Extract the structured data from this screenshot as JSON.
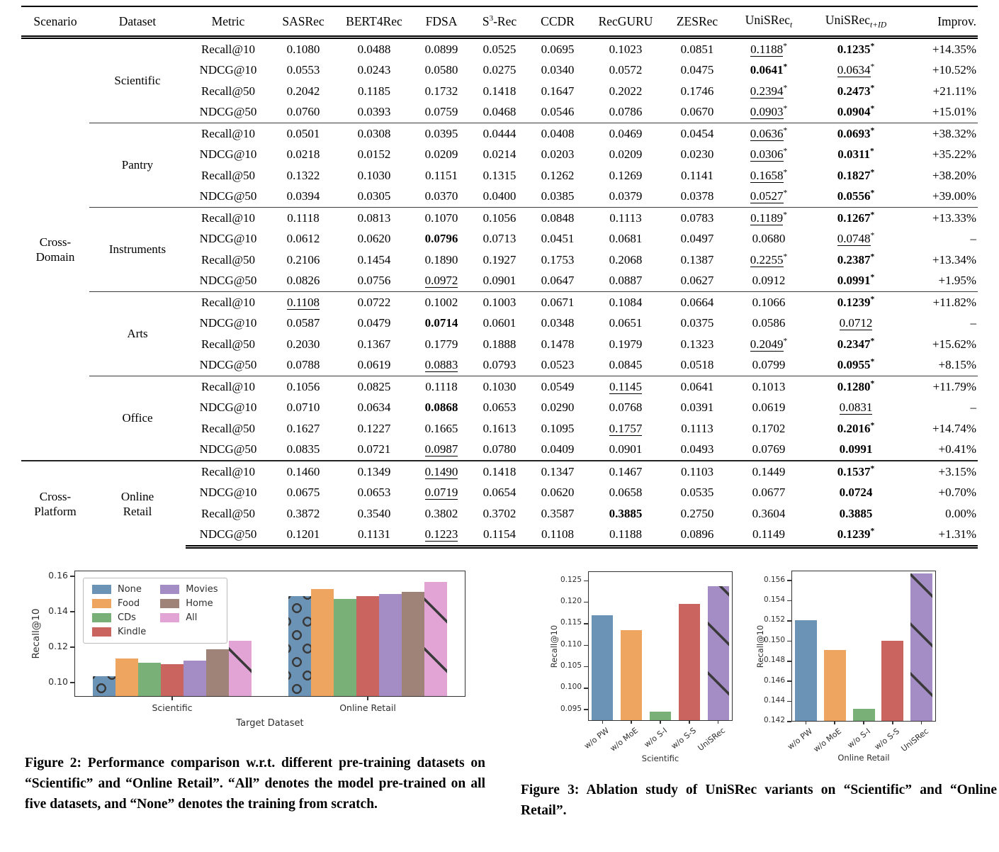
{
  "table": {
    "headers": [
      {
        "t": "Scenario"
      },
      {
        "t": "Dataset"
      },
      {
        "t": "Metric"
      },
      {
        "t": "SASRec"
      },
      {
        "t": "BERT4Rec"
      },
      {
        "t": "FDSA"
      },
      {
        "t": "S",
        "sup": "3",
        "t2": "-Rec"
      },
      {
        "t": "CCDR"
      },
      {
        "t": "RecGURU"
      },
      {
        "t": "ZESRec"
      },
      {
        "t": "UniSRec",
        "sub": "t"
      },
      {
        "t": "UniSRec",
        "sub": "t+ID"
      },
      {
        "t": "Improv."
      }
    ],
    "groups": [
      {
        "scenario_lines": [
          "Cross-",
          "Domain"
        ],
        "datasets": [
          {
            "name_lines": [
              "Scientific"
            ],
            "rows": [
              {
                "metric": "Recall@10",
                "cells": [
                  "0.1080",
                  "0.0488",
                  "0.0899",
                  "0.0525",
                  "0.0695",
                  "0.1023",
                  "0.0851",
                  {
                    "v": "0.1188",
                    "u": 1,
                    "s": 1
                  },
                  {
                    "v": "0.1235",
                    "b": 1,
                    "s": 1
                  }
                ],
                "improv": "+14.35%"
              },
              {
                "metric": "NDCG@10",
                "cells": [
                  "0.0553",
                  "0.0243",
                  "0.0580",
                  "0.0275",
                  "0.0340",
                  "0.0572",
                  "0.0475",
                  {
                    "v": "0.0641",
                    "b": 1,
                    "s": 1
                  },
                  {
                    "v": "0.0634",
                    "u": 1,
                    "s": 1
                  }
                ],
                "improv": "+10.52%"
              },
              {
                "metric": "Recall@50",
                "cells": [
                  "0.2042",
                  "0.1185",
                  "0.1732",
                  "0.1418",
                  "0.1647",
                  "0.2022",
                  "0.1746",
                  {
                    "v": "0.2394",
                    "u": 1,
                    "s": 1
                  },
                  {
                    "v": "0.2473",
                    "b": 1,
                    "s": 1
                  }
                ],
                "improv": "+21.11%"
              },
              {
                "metric": "NDCG@50",
                "cells": [
                  "0.0760",
                  "0.0393",
                  "0.0759",
                  "0.0468",
                  "0.0546",
                  "0.0786",
                  "0.0670",
                  {
                    "v": "0.0903",
                    "u": 1,
                    "s": 1
                  },
                  {
                    "v": "0.0904",
                    "b": 1,
                    "s": 1
                  }
                ],
                "improv": "+15.01%"
              }
            ]
          },
          {
            "name_lines": [
              "Pantry"
            ],
            "rows": [
              {
                "metric": "Recall@10",
                "cells": [
                  "0.0501",
                  "0.0308",
                  "0.0395",
                  "0.0444",
                  "0.0408",
                  "0.0469",
                  "0.0454",
                  {
                    "v": "0.0636",
                    "u": 1,
                    "s": 1
                  },
                  {
                    "v": "0.0693",
                    "b": 1,
                    "s": 1
                  }
                ],
                "improv": "+38.32%"
              },
              {
                "metric": "NDCG@10",
                "cells": [
                  "0.0218",
                  "0.0152",
                  "0.0209",
                  "0.0214",
                  "0.0203",
                  "0.0209",
                  "0.0230",
                  {
                    "v": "0.0306",
                    "u": 1,
                    "s": 1
                  },
                  {
                    "v": "0.0311",
                    "b": 1,
                    "s": 1
                  }
                ],
                "improv": "+35.22%"
              },
              {
                "metric": "Recall@50",
                "cells": [
                  "0.1322",
                  "0.1030",
                  "0.1151",
                  "0.1315",
                  "0.1262",
                  "0.1269",
                  "0.1141",
                  {
                    "v": "0.1658",
                    "u": 1,
                    "s": 1
                  },
                  {
                    "v": "0.1827",
                    "b": 1,
                    "s": 1
                  }
                ],
                "improv": "+38.20%"
              },
              {
                "metric": "NDCG@50",
                "cells": [
                  "0.0394",
                  "0.0305",
                  "0.0370",
                  "0.0400",
                  "0.0385",
                  "0.0379",
                  "0.0378",
                  {
                    "v": "0.0527",
                    "u": 1,
                    "s": 1
                  },
                  {
                    "v": "0.0556",
                    "b": 1,
                    "s": 1
                  }
                ],
                "improv": "+39.00%"
              }
            ]
          },
          {
            "name_lines": [
              "Instruments"
            ],
            "rows": [
              {
                "metric": "Recall@10",
                "cells": [
                  "0.1118",
                  "0.0813",
                  "0.1070",
                  "0.1056",
                  "0.0848",
                  "0.1113",
                  "0.0783",
                  {
                    "v": "0.1189",
                    "u": 1,
                    "s": 1
                  },
                  {
                    "v": "0.1267",
                    "b": 1,
                    "s": 1
                  }
                ],
                "improv": "+13.33%"
              },
              {
                "metric": "NDCG@10",
                "cells": [
                  "0.0612",
                  "0.0620",
                  {
                    "v": "0.0796",
                    "b": 1
                  },
                  "0.0713",
                  "0.0451",
                  "0.0681",
                  "0.0497",
                  "0.0680",
                  {
                    "v": "0.0748",
                    "u": 1,
                    "s": 1
                  }
                ],
                "improv": "–"
              },
              {
                "metric": "Recall@50",
                "cells": [
                  "0.2106",
                  "0.1454",
                  "0.1890",
                  "0.1927",
                  "0.1753",
                  "0.2068",
                  "0.1387",
                  {
                    "v": "0.2255",
                    "u": 1,
                    "s": 1
                  },
                  {
                    "v": "0.2387",
                    "b": 1,
                    "s": 1
                  }
                ],
                "improv": "+13.34%"
              },
              {
                "metric": "NDCG@50",
                "cells": [
                  "0.0826",
                  "0.0756",
                  {
                    "v": "0.0972",
                    "u": 1
                  },
                  "0.0901",
                  "0.0647",
                  "0.0887",
                  "0.0627",
                  "0.0912",
                  {
                    "v": "0.0991",
                    "b": 1,
                    "s": 1
                  }
                ],
                "improv": "+1.95%"
              }
            ]
          },
          {
            "name_lines": [
              "Arts"
            ],
            "rows": [
              {
                "metric": "Recall@10",
                "cells": [
                  {
                    "v": "0.1108",
                    "u": 1
                  },
                  "0.0722",
                  "0.1002",
                  "0.1003",
                  "0.0671",
                  "0.1084",
                  "0.0664",
                  "0.1066",
                  {
                    "v": "0.1239",
                    "b": 1,
                    "s": 1
                  }
                ],
                "improv": "+11.82%"
              },
              {
                "metric": "NDCG@10",
                "cells": [
                  "0.0587",
                  "0.0479",
                  {
                    "v": "0.0714",
                    "b": 1
                  },
                  "0.0601",
                  "0.0348",
                  "0.0651",
                  "0.0375",
                  "0.0586",
                  {
                    "v": "0.0712",
                    "u": 1
                  }
                ],
                "improv": "–"
              },
              {
                "metric": "Recall@50",
                "cells": [
                  "0.2030",
                  "0.1367",
                  "0.1779",
                  "0.1888",
                  "0.1478",
                  "0.1979",
                  "0.1323",
                  {
                    "v": "0.2049",
                    "u": 1,
                    "s": 1
                  },
                  {
                    "v": "0.2347",
                    "b": 1,
                    "s": 1
                  }
                ],
                "improv": "+15.62%"
              },
              {
                "metric": "NDCG@50",
                "cells": [
                  "0.0788",
                  "0.0619",
                  {
                    "v": "0.0883",
                    "u": 1
                  },
                  "0.0793",
                  "0.0523",
                  "0.0845",
                  "0.0518",
                  "0.0799",
                  {
                    "v": "0.0955",
                    "b": 1,
                    "s": 1
                  }
                ],
                "improv": "+8.15%"
              }
            ]
          },
          {
            "name_lines": [
              "Office"
            ],
            "rows": [
              {
                "metric": "Recall@10",
                "cells": [
                  "0.1056",
                  "0.0825",
                  "0.1118",
                  "0.1030",
                  "0.0549",
                  {
                    "v": "0.1145",
                    "u": 1
                  },
                  "0.0641",
                  "0.1013",
                  {
                    "v": "0.1280",
                    "b": 1,
                    "s": 1
                  }
                ],
                "improv": "+11.79%"
              },
              {
                "metric": "NDCG@10",
                "cells": [
                  "0.0710",
                  "0.0634",
                  {
                    "v": "0.0868",
                    "b": 1
                  },
                  "0.0653",
                  "0.0290",
                  "0.0768",
                  "0.0391",
                  "0.0619",
                  {
                    "v": "0.0831",
                    "u": 1
                  }
                ],
                "improv": "–"
              },
              {
                "metric": "Recall@50",
                "cells": [
                  "0.1627",
                  "0.1227",
                  "0.1665",
                  "0.1613",
                  "0.1095",
                  {
                    "v": "0.1757",
                    "u": 1
                  },
                  "0.1113",
                  "0.1702",
                  {
                    "v": "0.2016",
                    "b": 1,
                    "s": 1
                  }
                ],
                "improv": "+14.74%"
              },
              {
                "metric": "NDCG@50",
                "cells": [
                  "0.0835",
                  "0.0721",
                  {
                    "v": "0.0987",
                    "u": 1
                  },
                  "0.0780",
                  "0.0409",
                  "0.0901",
                  "0.0493",
                  "0.0769",
                  {
                    "v": "0.0991",
                    "b": 1
                  }
                ],
                "improv": "+0.41%"
              }
            ]
          }
        ]
      },
      {
        "scenario_lines": [
          "Cross-",
          "Platform"
        ],
        "datasets": [
          {
            "name_lines": [
              "Online",
              "Retail"
            ],
            "rows": [
              {
                "metric": "Recall@10",
                "cells": [
                  "0.1460",
                  "0.1349",
                  {
                    "v": "0.1490",
                    "u": 1
                  },
                  "0.1418",
                  "0.1347",
                  "0.1467",
                  "0.1103",
                  "0.1449",
                  {
                    "v": "0.1537",
                    "b": 1,
                    "s": 1
                  }
                ],
                "improv": "+3.15%"
              },
              {
                "metric": "NDCG@10",
                "cells": [
                  "0.0675",
                  "0.0653",
                  {
                    "v": "0.0719",
                    "u": 1
                  },
                  "0.0654",
                  "0.0620",
                  "0.0658",
                  "0.0535",
                  "0.0677",
                  {
                    "v": "0.0724",
                    "b": 1
                  }
                ],
                "improv": "+0.70%"
              },
              {
                "metric": "Recall@50",
                "cells": [
                  "0.3872",
                  "0.3540",
                  "0.3802",
                  "0.3702",
                  "0.3587",
                  {
                    "v": "0.3885",
                    "b": 1
                  },
                  "0.2750",
                  "0.3604",
                  {
                    "v": "0.3885",
                    "b": 1
                  }
                ],
                "improv": "0.00%"
              },
              {
                "metric": "NDCG@50",
                "cells": [
                  "0.1201",
                  "0.1131",
                  {
                    "v": "0.1223",
                    "u": 1
                  },
                  "0.1154",
                  "0.1108",
                  "0.1188",
                  "0.0896",
                  "0.1149",
                  {
                    "v": "0.1239",
                    "b": 1,
                    "s": 1
                  }
                ],
                "improv": "+1.31%"
              }
            ]
          }
        ]
      }
    ]
  },
  "chart_data": [
    {
      "id": "fig2",
      "type": "bar",
      "grouped": true,
      "ylabel": "Recall@10",
      "xlabel": "Target Dataset",
      "categories": [
        "Scientific",
        "Online Retail"
      ],
      "series": [
        {
          "name": "None",
          "values": [
            0.1036,
            0.149
          ],
          "hatch": "circle"
        },
        {
          "name": "Food",
          "values": [
            0.1135,
            0.153
          ]
        },
        {
          "name": "CDs",
          "values": [
            0.1113,
            0.1473
          ]
        },
        {
          "name": "Kindle",
          "values": [
            0.1103,
            0.1489
          ]
        },
        {
          "name": "Movies",
          "values": [
            0.1124,
            0.1502
          ]
        },
        {
          "name": "Home",
          "values": [
            0.119,
            0.1513
          ]
        },
        {
          "name": "All",
          "values": [
            0.1237,
            0.1567
          ],
          "hatch": "diag"
        }
      ],
      "colors": {
        "None": "#6a93b6",
        "Food": "#eda55f",
        "CDs": "#79b077",
        "Kindle": "#c9655e",
        "Movies": "#a48cc4",
        "Home": "#9f8378",
        "All": "#e2a4d4"
      },
      "yticks": [
        "0.10",
        "0.12",
        "0.14",
        "0.16"
      ],
      "ylim": [
        0.092,
        0.1633
      ],
      "legend_columns": [
        [
          "None",
          "Food",
          "CDs",
          "Kindle"
        ],
        [
          "Movies",
          "Home",
          "All"
        ]
      ],
      "legend_position": "upper left",
      "grid": false
    },
    {
      "id": "fig3a",
      "type": "bar",
      "ylabel": "Recall@10",
      "xlabel": "Scientific",
      "categories": [
        "w/o PW",
        "w/o MoE",
        "w/o S-I",
        "w/o S-S",
        "UniSRec"
      ],
      "values": [
        0.117,
        0.1135,
        0.0946,
        0.1196,
        0.1238
      ],
      "colors_list": [
        "#6a93b6",
        "#eda55f",
        "#79b077",
        "#c9655e",
        "#a48cc4"
      ],
      "hatch_indices": {
        "4": "diag"
      },
      "yticks": [
        "0.095",
        "0.100",
        "0.105",
        "0.110",
        "0.115",
        "0.120",
        "0.125"
      ],
      "ylim": [
        0.0924,
        0.1272
      ],
      "grid": false
    },
    {
      "id": "fig3b",
      "type": "bar",
      "ylabel": "Recall@10",
      "xlabel": "Online Retail",
      "categories": [
        "w/o PW",
        "w/o MoE",
        "w/o S-I",
        "w/o S-S",
        "UniSRec"
      ],
      "values": [
        0.1521,
        0.1491,
        0.1433,
        0.15,
        0.1567
      ],
      "colors_list": [
        "#6a93b6",
        "#eda55f",
        "#79b077",
        "#c9655e",
        "#a48cc4"
      ],
      "hatch_indices": {
        "4": "diag"
      },
      "yticks": [
        "0.142",
        "0.144",
        "0.146",
        "0.148",
        "0.150",
        "0.152",
        "0.154",
        "0.156"
      ],
      "ylim": [
        0.142,
        0.157
      ],
      "grid": false
    }
  ],
  "figures": {
    "fig2_caption": "Figure 2: Performance comparison w.r.t. different pre-training datasets on “Scientific” and “Online Retail”. “All” denotes the model pre-trained on all five datasets, and “None” denotes the training from scratch.",
    "fig3_caption": "Figure 3: Ablation study of UniSRec variants on “Scientific” and “Online Retail”."
  }
}
